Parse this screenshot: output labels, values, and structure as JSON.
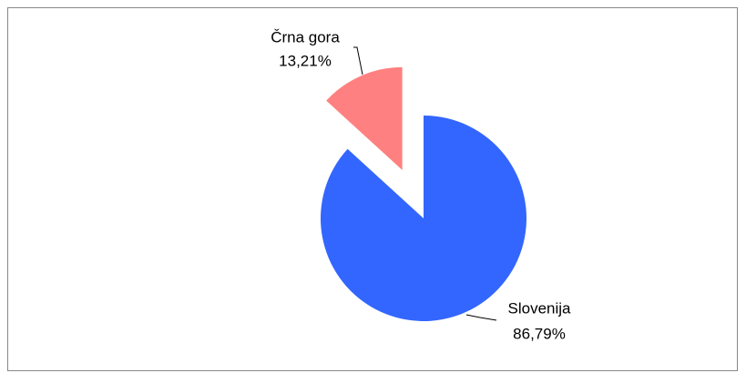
{
  "chart_data": {
    "type": "pie",
    "categories": [
      "Slovenija",
      "Črna gora"
    ],
    "values": [
      86.79,
      13.21
    ],
    "value_labels": [
      "86,79%",
      "13,21%"
    ],
    "colors": [
      "#3366ff",
      "#ff8080"
    ]
  }
}
